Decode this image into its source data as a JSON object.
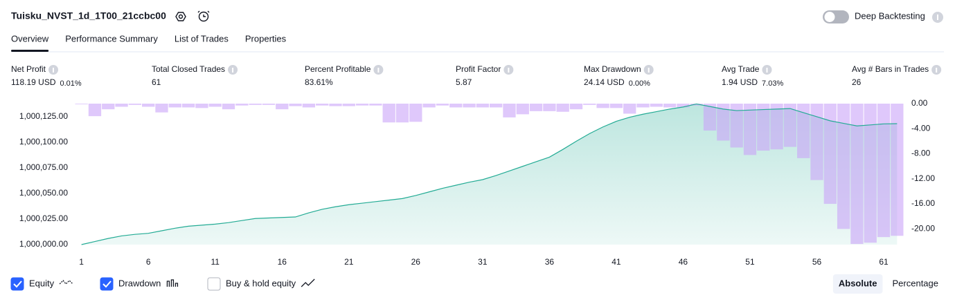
{
  "header": {
    "title": "Tuisku_NVST_1d_1T00_21ccbc00",
    "toggle_label": "Deep Backtesting",
    "toggle_on": false
  },
  "tabs": [
    {
      "label": "Overview",
      "active": true
    },
    {
      "label": "Performance Summary",
      "active": false
    },
    {
      "label": "List of Trades",
      "active": false
    },
    {
      "label": "Properties",
      "active": false
    }
  ],
  "metrics": [
    {
      "label": "Net Profit",
      "value": "118.19 USD",
      "sub": "0.01%",
      "color": "#089981"
    },
    {
      "label": "Total Closed Trades",
      "value": "61",
      "color": "#131722"
    },
    {
      "label": "Percent Profitable",
      "value": "83.61%",
      "color": "#089981"
    },
    {
      "label": "Profit Factor",
      "value": "5.87",
      "color": "#089981"
    },
    {
      "label": "Max Drawdown",
      "value": "24.14 USD",
      "sub": "0.00%",
      "color": "#f23645"
    },
    {
      "label": "Avg Trade",
      "value": "1.94 USD",
      "sub": "7.03%",
      "color": "#089981"
    },
    {
      "label": "Avg # Bars in Trades",
      "value": "26",
      "color": "#131722"
    }
  ],
  "chart_data": {
    "type": "line",
    "x": [
      1,
      2,
      3,
      4,
      5,
      6,
      7,
      8,
      9,
      10,
      11,
      12,
      13,
      14,
      15,
      16,
      17,
      18,
      19,
      20,
      21,
      22,
      23,
      24,
      25,
      26,
      27,
      28,
      29,
      30,
      31,
      32,
      33,
      34,
      35,
      36,
      37,
      38,
      39,
      40,
      41,
      42,
      43,
      44,
      45,
      46,
      47,
      48,
      49,
      50,
      51,
      52,
      53,
      54,
      55,
      56,
      57,
      58,
      59,
      60,
      61,
      62
    ],
    "xlim": [
      0.5,
      62.5
    ],
    "xticks": [
      1,
      6,
      11,
      16,
      21,
      26,
      31,
      36,
      41,
      46,
      51,
      56,
      61
    ],
    "ylim": [
      1000000,
      1000137.8
    ],
    "yticks": [
      {
        "value": 1000000,
        "label": "1,000,000.00"
      },
      {
        "value": 1000025,
        "label": "1,000,025.00"
      },
      {
        "value": 1000050,
        "label": "1,000,050.00"
      },
      {
        "value": 1000075,
        "label": "1,000,075.00"
      },
      {
        "value": 1000100,
        "label": "1,000,100.00"
      },
      {
        "value": 1000125,
        "label": "1,000,125.00"
      }
    ],
    "y2lim": [
      -22.5,
      0
    ],
    "y2ticks": [
      {
        "value": 0,
        "label": "0.00"
      },
      {
        "value": -4,
        "label": "-4.00"
      },
      {
        "value": -8,
        "label": "-8.00"
      },
      {
        "value": -12,
        "label": "-12.00"
      },
      {
        "value": -16,
        "label": "-16.00"
      },
      {
        "value": -20,
        "label": "-20.00"
      }
    ],
    "series": [
      {
        "name": "Equity",
        "color": "#22ab94",
        "visible": true,
        "values": [
          1000000,
          1000003,
          1000006,
          1000008.5,
          1000010,
          1000011,
          1000013.5,
          1000016,
          1000018,
          1000019,
          1000020,
          1000021.5,
          1000023.5,
          1000025.5,
          1000026,
          1000026.5,
          1000027,
          1000031,
          1000034.5,
          1000037,
          1000039,
          1000040.5,
          1000042,
          1000043.5,
          1000045,
          1000048,
          1000051.5,
          1000055,
          1000058,
          1000061,
          1000063.5,
          1000067.5,
          1000072,
          1000076.5,
          1000081,
          1000085.5,
          1000093,
          1000101,
          1000108.5,
          1000115,
          1000120.5,
          1000124.5,
          1000127.5,
          1000130,
          1000132.5,
          1000134.5,
          1000137.5,
          1000135,
          1000132.5,
          1000131,
          1000131.5,
          1000132,
          1000132.5,
          1000133,
          1000129,
          1000125,
          1000121,
          1000118.5,
          1000116,
          1000117,
          1000118,
          1000118.19
        ]
      },
      {
        "name": "Drawdown",
        "color": "#c9a4f8",
        "visible": true,
        "type": "bar",
        "axis": "y2",
        "values": [
          -0.1,
          -2,
          -0.9,
          -0.5,
          -0.2,
          -0.5,
          -1.4,
          -0.6,
          -0.6,
          -0.7,
          -0.5,
          -0.9,
          -0.3,
          -0.2,
          -0.2,
          -0.9,
          -0.4,
          -0.6,
          -0.3,
          -0.4,
          -0.4,
          -0.3,
          -0.3,
          -3,
          -3,
          -2.9,
          -0.6,
          -0.3,
          -0.6,
          -0.6,
          -0.6,
          -0.6,
          -2.2,
          -1.7,
          -1.2,
          -1.2,
          -1.3,
          -0.9,
          -0.2,
          -0.7,
          -0.7,
          -1.6,
          -0.6,
          -0.5,
          -0.6,
          -0.6,
          -0.3,
          -4.3,
          -5.9,
          -7,
          -8.2,
          -7.5,
          -7.3,
          -6.9,
          -8.7,
          -12.2,
          -16,
          -20,
          -22.4,
          -22.2,
          -21.3,
          -21.1
        ]
      }
    ]
  },
  "controls": {
    "buy_hold": {
      "label": "Buy & hold equity",
      "checked": false
    },
    "modes": [
      {
        "label": "Absolute",
        "active": true
      },
      {
        "label": "Percentage",
        "active": false
      }
    ]
  }
}
